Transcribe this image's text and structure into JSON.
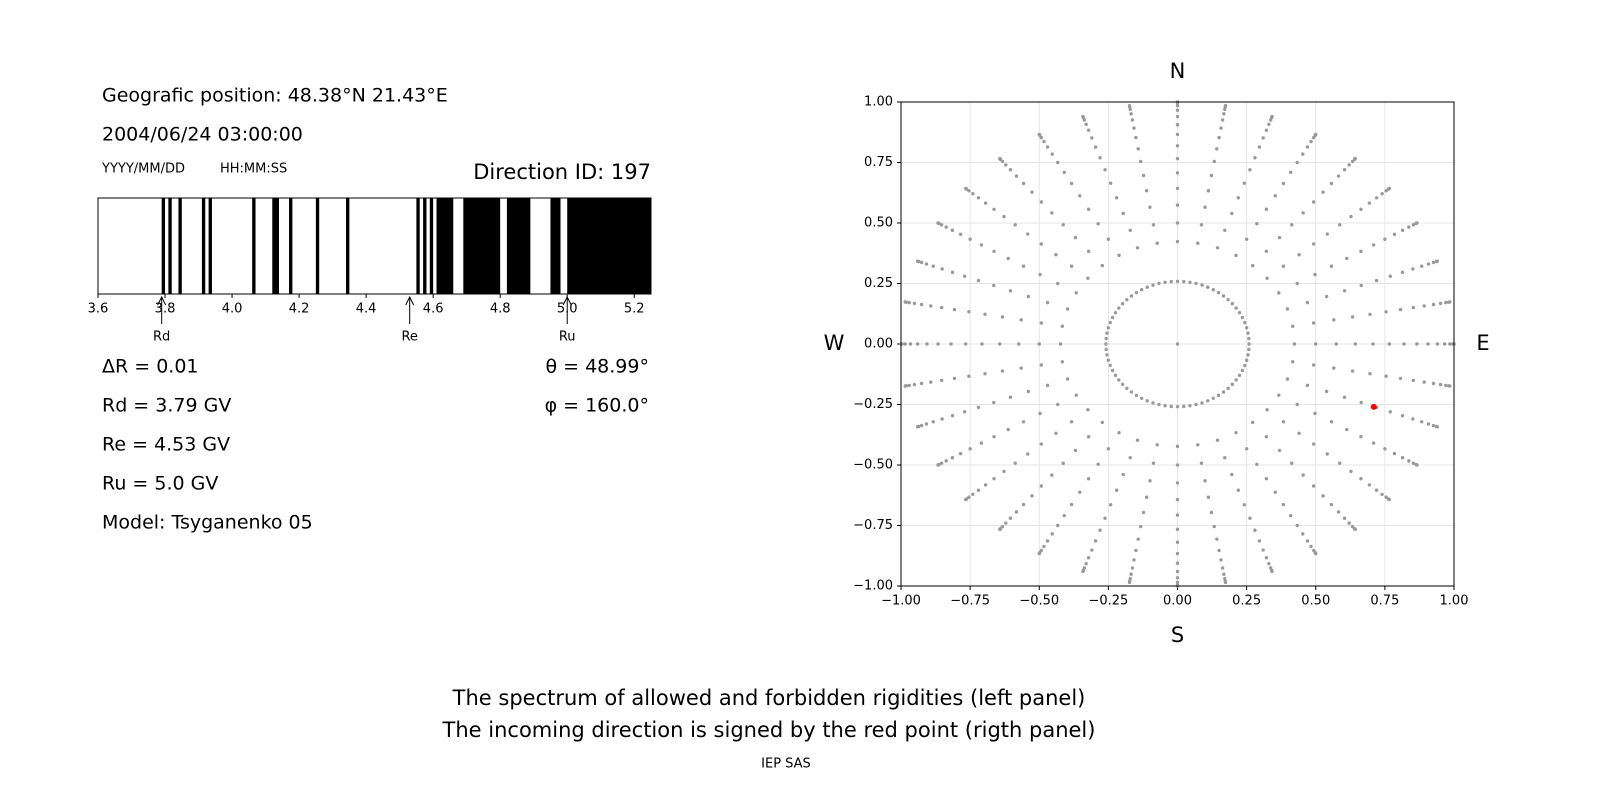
{
  "texts": {
    "position": "Geografic position: 48.38°N 21.43°E",
    "datetime": "2004/06/24 03:00:00",
    "date_format": "YYYY/MM/DD",
    "time_format": "HH:MM:SS",
    "delta_r": "ΔR = 0.01",
    "rd": "Rd = 3.79 GV",
    "re": "Re = 4.53 GV",
    "ru": "Ru = 5.0 GV",
    "model": "Model: Tsyganenko 05",
    "theta": "θ = 48.99°",
    "phi": "φ = 160.0°",
    "caption_1": "The spectrum of allowed and forbidden rigidities (left panel)",
    "caption_2": "The incoming direction is signed by the red point (rigth panel)",
    "credit": "IEP SAS"
  },
  "chart_data": [
    {
      "type": "spectrum",
      "title": "Direction ID: 197",
      "color": "#000000",
      "xlim": [
        3.6,
        5.25
      ],
      "xticks": [
        3.6,
        3.8,
        {
          "value": 4,
          "label": "4.0"
        },
        4.2,
        4.4,
        4.6,
        4.8,
        {
          "value": 5,
          "label": "5.0"
        },
        5.2
      ],
      "intervals": [
        [
          3.79,
          3.8
        ],
        [
          3.81,
          3.82
        ],
        [
          3.84,
          3.85
        ],
        [
          3.91,
          3.92
        ],
        [
          3.93,
          3.94
        ],
        [
          4.06,
          4.07
        ],
        [
          4.12,
          4.14
        ],
        [
          4.17,
          4.18
        ],
        [
          4.25,
          4.26
        ],
        [
          4.34,
          4.35
        ],
        [
          4.55,
          4.56
        ],
        [
          4.57,
          4.58
        ],
        [
          4.59,
          4.6
        ],
        [
          4.61,
          4.66
        ],
        [
          4.69,
          4.8
        ],
        [
          4.82,
          4.89
        ],
        [
          4.95,
          4.98
        ],
        [
          5.0,
          5.25
        ]
      ],
      "markers": [
        {
          "label": "Rd",
          "value": 3.79
        },
        {
          "label": "Re",
          "value": 4.53
        },
        {
          "label": "Ru",
          "value": 5.0
        }
      ]
    },
    {
      "type": "scatter",
      "grid": true,
      "xlim": [
        -1,
        1
      ],
      "ylim": [
        -1,
        1
      ],
      "xticks": [
        {
          "value": -1,
          "label": "−1.00"
        },
        {
          "value": -0.75,
          "label": "−0.75"
        },
        {
          "value": -0.5,
          "label": "−0.50"
        },
        {
          "value": -0.25,
          "label": "−0.25"
        },
        {
          "value": 0,
          "label": "0.00"
        },
        0.25,
        {
          "value": 0.5,
          "label": "0.50"
        },
        0.75,
        {
          "value": 1,
          "label": "1.00"
        }
      ],
      "yticks": [
        {
          "value": -1,
          "label": "−1.00"
        },
        {
          "value": -0.75,
          "label": "−0.75"
        },
        {
          "value": -0.5,
          "label": "−0.50"
        },
        {
          "value": -0.25,
          "label": "−0.25"
        },
        {
          "value": 0,
          "label": "0.00"
        },
        0.25,
        {
          "value": 0.5,
          "label": "0.50"
        },
        0.75,
        {
          "value": 1,
          "label": "1.00"
        }
      ],
      "rings": {
        "color": "#999999",
        "radii": [
          0,
          0.259,
          0.423,
          0.5,
          0.574,
          0.643,
          0.707,
          0.766,
          0.819,
          0.866,
          0.906,
          0.94,
          0.966,
          0.985,
          0.996,
          1.0
        ],
        "counts": [
          1,
          72,
          36,
          36,
          36,
          36,
          36,
          36,
          36,
          36,
          36,
          36,
          36,
          36,
          36,
          36
        ]
      },
      "point": {
        "x": 0.71,
        "y": -0.26,
        "color": "#ff0000"
      },
      "compass": [
        "N",
        "S",
        "W",
        "E"
      ]
    }
  ]
}
